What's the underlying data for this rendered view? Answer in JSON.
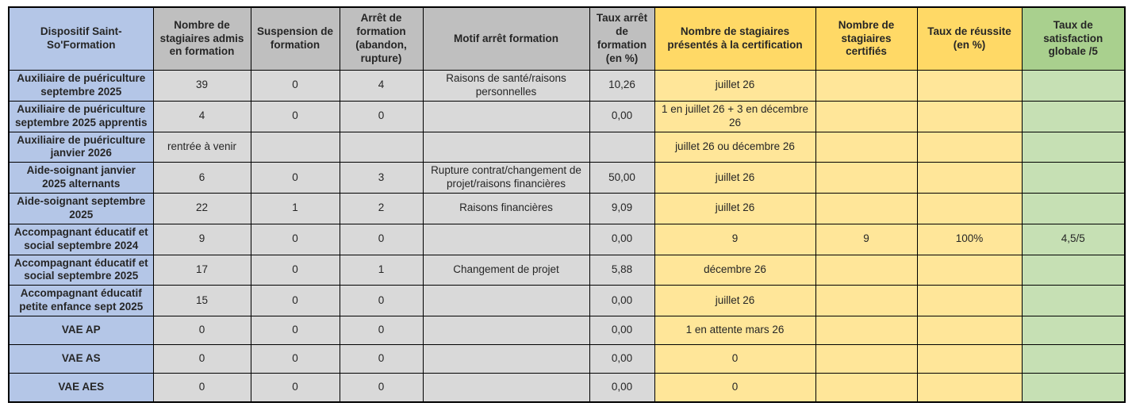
{
  "table": {
    "title": "Dispositif Saint-So'Formation",
    "colors": {
      "blue_header": "#b4c6e7",
      "blue_body": "#b4c6e7",
      "gray_header": "#bfbfbf",
      "gray_body": "#d9d9d9",
      "yellow_header": "#ffd966",
      "yellow_body": "#ffe699",
      "green_header": "#a9d08e",
      "green_body": "#c6e0b4",
      "border": "#000000",
      "text": "#262626"
    },
    "columns": [
      {
        "key": "dispositif",
        "group": "blue",
        "label": "Dispositif Saint-So'Formation"
      },
      {
        "key": "admis",
        "group": "gray",
        "label": "Nombre de stagiaires admis en formation"
      },
      {
        "key": "suspension",
        "group": "gray",
        "label": "Suspension de formation"
      },
      {
        "key": "arret",
        "group": "gray",
        "label": "Arrêt de formation (abandon, rupture)"
      },
      {
        "key": "motif",
        "group": "gray",
        "label": "Motif arrêt formation"
      },
      {
        "key": "taux-arret",
        "group": "gray",
        "label": "Taux arrêt de formation (en %)"
      },
      {
        "key": "presentes",
        "group": "yellow",
        "label": "Nombre de stagiaires présentés à la certification"
      },
      {
        "key": "certifies",
        "group": "yellow",
        "label": "Nombre de stagiaires certifiés"
      },
      {
        "key": "taux-reussite",
        "group": "yellow",
        "label": "Taux de réussite (en %)"
      },
      {
        "key": "satisfaction",
        "group": "green",
        "label": "Taux de satisfaction globale /5"
      }
    ],
    "rows": [
      {
        "cells": [
          "Auxiliaire de puériculture septembre 2025",
          "39",
          "0",
          "4",
          "Raisons de santé/raisons personnelles",
          "10,26",
          "juillet 26",
          "",
          "",
          ""
        ]
      },
      {
        "cells": [
          "Auxiliaire de puériculture septembre 2025 apprentis",
          "4",
          "0",
          "0",
          "",
          "0,00",
          "1 en juillet 26 + 3 en décembre 26",
          "",
          "",
          ""
        ]
      },
      {
        "cells": [
          "Auxiliaire de puériculture janvier 2026",
          "rentrée à venir",
          "",
          "",
          "",
          "",
          "juillet 26 ou décembre 26",
          "",
          "",
          ""
        ]
      },
      {
        "cells": [
          "Aide-soignant janvier 2025 alternants",
          "6",
          "0",
          "3",
          "Rupture contrat/changement de projet/raisons financières",
          "50,00",
          "juillet 26",
          "",
          "",
          ""
        ]
      },
      {
        "cells": [
          "Aide-soignant septembre 2025",
          "22",
          "1",
          "2",
          "Raisons financières",
          "9,09",
          "juillet 26",
          "",
          "",
          ""
        ]
      },
      {
        "cells": [
          "Accompagnant éducatif et social septembre 2024",
          "9",
          "0",
          "0",
          "",
          "0,00",
          "9",
          "9",
          "100%",
          "4,5/5"
        ]
      },
      {
        "cells": [
          "Accompagnant éducatif et social septembre 2025",
          "17",
          "0",
          "1",
          "Changement de projet",
          "5,88",
          "décembre 26",
          "",
          "",
          ""
        ]
      },
      {
        "cells": [
          "Accompagnant éducatif petite enfance sept 2025",
          "15",
          "0",
          "0",
          "",
          "0,00",
          "juillet 26",
          "",
          "",
          ""
        ]
      },
      {
        "cells": [
          "VAE AP",
          "0",
          "0",
          "0",
          "",
          "0,00",
          "1 en attente mars 26",
          "",
          "",
          ""
        ]
      },
      {
        "cells": [
          "VAE AS",
          "0",
          "0",
          "0",
          "",
          "0,00",
          "0",
          "",
          "",
          ""
        ]
      },
      {
        "cells": [
          "VAE AES",
          "0",
          "0",
          "0",
          "",
          "0,00",
          "0",
          "",
          "",
          ""
        ]
      }
    ]
  }
}
